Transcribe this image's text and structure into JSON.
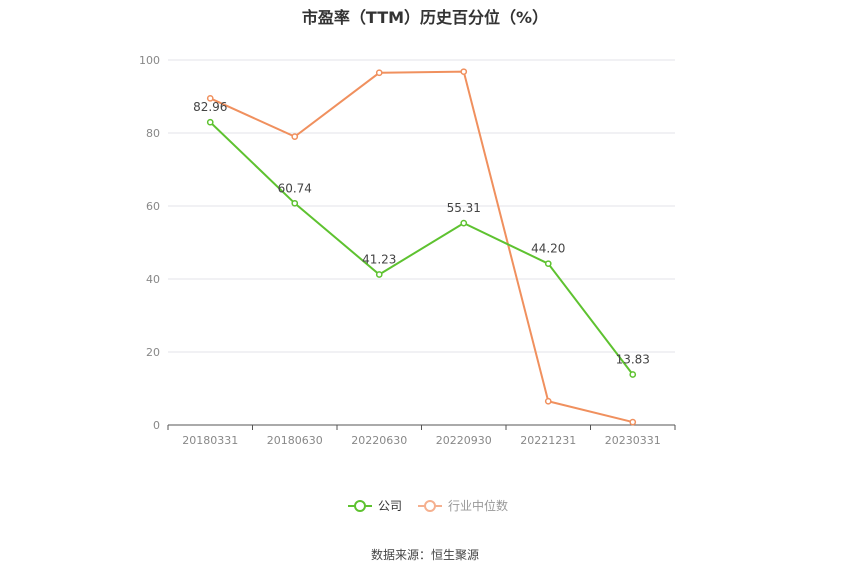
{
  "chart_data": {
    "type": "line",
    "title": "市盈率（TTM）历史百分位（%）",
    "categories": [
      "20180331",
      "20180630",
      "20220630",
      "20220930",
      "20221231",
      "20230331"
    ],
    "ylim": [
      0,
      100
    ],
    "yticks": [
      0,
      20,
      40,
      60,
      80,
      100
    ],
    "grid": true,
    "legend_position": "bottom-center",
    "series": [
      {
        "name": "公司",
        "color": "#5ec230",
        "values": [
          82.96,
          60.74,
          41.23,
          55.31,
          44.2,
          13.83
        ],
        "labels": [
          "82.96",
          "60.74",
          "41.23",
          "55.31",
          "44.20",
          "13.83"
        ]
      },
      {
        "name": "行业中位数",
        "color": "#f0905e",
        "values": [
          89.5,
          79.0,
          96.5,
          96.8,
          6.5,
          0.8
        ]
      }
    ]
  },
  "source": "数据来源：恒生聚源"
}
